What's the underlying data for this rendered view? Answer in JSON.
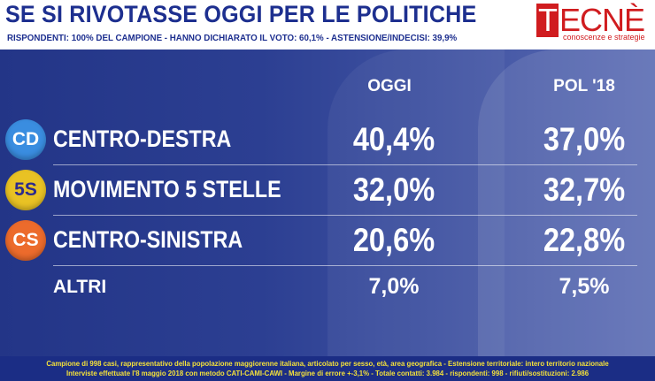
{
  "header": {
    "title": "SE SI RIVOTASSE OGGI PER LE POLITICHE",
    "subtitle": "RISPONDENTI: 100% DEL CAMPIONE - HANNO DICHIARATO IL VOTO: 60,1% - ASTENSIONE/INDECISI: 39,9%"
  },
  "logo": {
    "letter": "T",
    "rest": "ECNÈ",
    "tagline": "conoscenze e strategie"
  },
  "chart_data": {
    "type": "table",
    "columns": [
      "OGGI",
      "POL '18"
    ],
    "rows": [
      {
        "badge": "CD",
        "party": "CENTRO-DESTRA",
        "oggi": 40.4,
        "pol18": 37.0,
        "oggi_label": "40,4%",
        "pol18_label": "37,0%",
        "color": "#3a8de0"
      },
      {
        "badge": "5S",
        "party": "MOVIMENTO 5 STELLE",
        "oggi": 32.0,
        "pol18": 32.7,
        "oggi_label": "32,0%",
        "pol18_label": "32,7%",
        "color": "#e9c224"
      },
      {
        "badge": "CS",
        "party": "CENTRO-SINISTRA",
        "oggi": 20.6,
        "pol18": 22.8,
        "oggi_label": "20,6%",
        "pol18_label": "22,8%",
        "color": "#ec6b2c"
      },
      {
        "badge": "",
        "party": "ALTRI",
        "oggi": 7.0,
        "pol18": 7.5,
        "oggi_label": "7,0%",
        "pol18_label": "7,5%",
        "color": ""
      }
    ]
  },
  "footer": {
    "line1": "Campione di 998 casi, rappresentativo della popolazione maggiorenne italiana, articolato per sesso, età, area geografica - Estensione territoriale: intero territorio nazionale",
    "line2": "Interviste effettuate l'8 maggio 2018 con metodo CATI-CAMI-CAWI - Margine di errore +-3,1% - Totale contatti: 3.984 - rispondenti: 998 - rifiuti/sostituzioni: 2.986"
  }
}
